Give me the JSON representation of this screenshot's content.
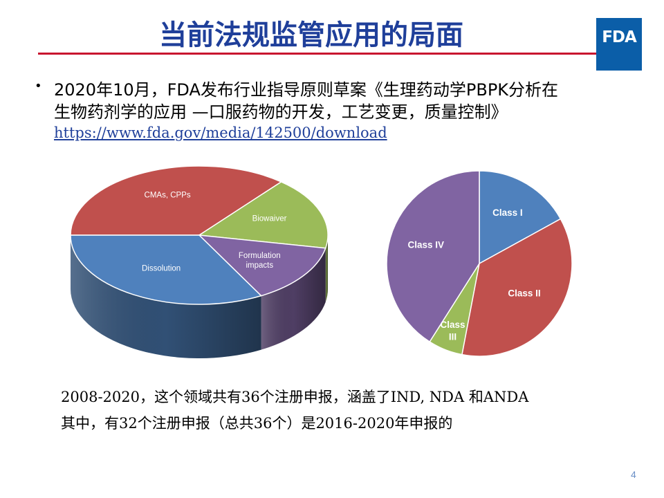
{
  "slide": {
    "title": "当前法规监管应用的局面",
    "logo_text": "FDA",
    "bullet": {
      "line1": "2020年10月，FDA发布行业指导原则草案《生理药动学PBPK分析在",
      "line2": "生物药剂学的应用 —口服药物的开发，工艺变更，质量控制》",
      "link": "https://www.fda.gov/media/142500/download"
    },
    "summary": {
      "line1": "2008-2020，这个领域共有36个注册申报，涵盖了IND, NDA 和ANDA",
      "line2": "其中，有32个注册申报（总共36个）是2016-2020年申报的"
    },
    "page_number": "4"
  },
  "colors": {
    "title": "#1f3f9a",
    "rule": "#c8102e",
    "logo_bg": "#0b5ea8",
    "blue": "#4f81bd",
    "red": "#c0504d",
    "green": "#9bbb59",
    "purple": "#8064a2"
  },
  "chart_data": [
    {
      "type": "pie",
      "style": "3d",
      "title": "",
      "slices": [
        {
          "label": "CMAs, CPPs",
          "value": 36,
          "color": "#c0504d"
        },
        {
          "label": "Biowaiver",
          "value": 17,
          "color": "#9bbb59"
        },
        {
          "label": "Formulation impacts",
          "value": 14,
          "color": "#8064a2"
        },
        {
          "label": "Dissolution",
          "value": 33,
          "color": "#4f81bd"
        }
      ]
    },
    {
      "type": "pie",
      "title": "",
      "slices": [
        {
          "label": "Class I",
          "value": 17,
          "color": "#4f81bd"
        },
        {
          "label": "Class II",
          "value": 36,
          "color": "#c0504d"
        },
        {
          "label": "Class III",
          "value": 6,
          "color": "#9bbb59"
        },
        {
          "label": "Class IV",
          "value": 41,
          "color": "#8064a2"
        }
      ]
    }
  ]
}
